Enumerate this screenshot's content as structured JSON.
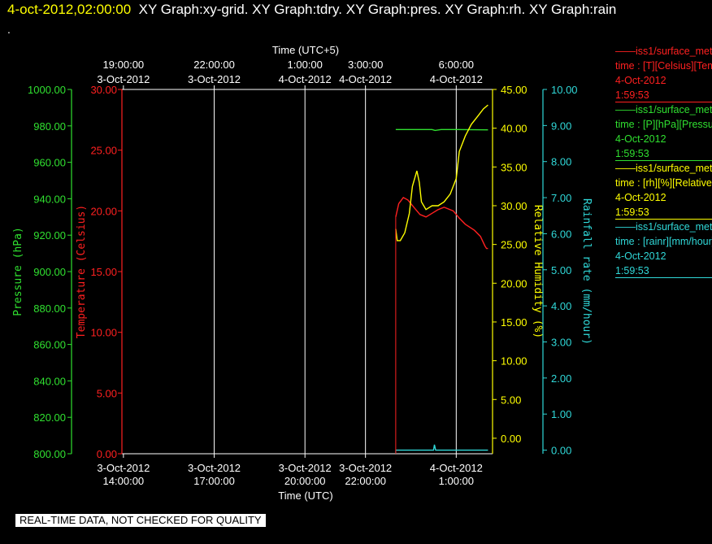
{
  "header": {
    "datetime": "4-oct-2012,02:00:00",
    "graphs": "XY Graph:xy-grid.  XY Graph:tdry.  XY Graph:pres.  XY Graph:rh.  XY Graph:rain",
    "dot": "."
  },
  "banner": "REAL-TIME DATA, NOT CHECKED FOR QUALITY",
  "legend": [
    {
      "name": "iss1/surface_met",
      "line1": "——iss1/surface_met",
      "line2": "time : [T][Celsius][Temperature]",
      "line3": "4-Oct-2012",
      "line4": "1:59:53",
      "color": "#ff2020"
    },
    {
      "name": "iss1/surface_met",
      "line1": "——iss1/surface_met",
      "line2": "time : [P][hPa][Pressure]",
      "line3": "4-Oct-2012",
      "line4": "1:59:53",
      "color": "#30e030"
    },
    {
      "name": "iss1/surface_met",
      "line1": "——iss1/surface_met",
      "line2": "time : [rh][%][Relative Humidity]",
      "line3": "4-Oct-2012",
      "line4": "1:59:53",
      "color": "#ffff00"
    },
    {
      "name": "iss1/surface_met",
      "line1": "——iss1/surface_met",
      "line2": "time : [rainr][mm/hour]",
      "line3": "4-Oct-2012",
      "line4": "1:59:53",
      "color": "#30d8d8"
    }
  ],
  "chart_data": {
    "type": "line",
    "colors": {
      "temperature": "#ff2020",
      "pressure": "#30e030",
      "humidity": "#ffff00",
      "rain": "#30d8d8",
      "grid": "#ffffff"
    },
    "x_axis_bottom": {
      "label": "Time (UTC)",
      "ticks": [
        {
          "date": "3-Oct-2012",
          "time": "14:00:00",
          "h": 14
        },
        {
          "date": "3-Oct-2012",
          "time": "17:00:00",
          "h": 17
        },
        {
          "date": "3-Oct-2012",
          "time": "20:00:00",
          "h": 20
        },
        {
          "date": "3-Oct-2012",
          "time": "22:00:00",
          "h": 22
        },
        {
          "date": "4-Oct-2012",
          "time": "1:00:00",
          "h": 25
        }
      ],
      "range_h": [
        13.95,
        26.2
      ]
    },
    "x_axis_top": {
      "label": "Time (UTC+5)",
      "ticks": [
        {
          "time": "19:00:00",
          "date": "3-Oct-2012",
          "h": 14
        },
        {
          "time": "22:00:00",
          "date": "3-Oct-2012",
          "h": 17
        },
        {
          "time": "1:00:00",
          "date": "4-Oct-2012",
          "h": 20
        },
        {
          "time": "3:00:00",
          "date": "4-Oct-2012",
          "h": 22
        },
        {
          "time": "6:00:00",
          "date": "4-Oct-2012",
          "h": 25
        }
      ]
    },
    "vertical_grid_h": [
      17,
      20,
      22,
      25
    ],
    "y_axes": [
      {
        "key": "pressure",
        "label": "Pressure (hPa)",
        "range": [
          800,
          1000
        ],
        "ticks": [
          "800.00",
          "820.00",
          "840.00",
          "860.00",
          "880.00",
          "900.00",
          "920.00",
          "940.00",
          "960.00",
          "980.00",
          "1000.00"
        ]
      },
      {
        "key": "temperature",
        "label": "Temperature (Celsius)",
        "range": [
          0,
          30
        ],
        "ticks": [
          "0.00",
          "5.00",
          "10.00",
          "15.00",
          "20.00",
          "25.00",
          "30.00"
        ]
      },
      {
        "key": "humidity",
        "label": "Relative Humidity (%)",
        "range": [
          -2,
          45
        ],
        "ticks": [
          "0.00",
          "5.00",
          "10.00",
          "15.00",
          "20.00",
          "25.00",
          "30.00",
          "35.00",
          "40.00",
          "45.00"
        ]
      },
      {
        "key": "rain",
        "label": "Rainfall rate (mm/hour)",
        "range": [
          -0.1,
          10
        ],
        "ticks": [
          "0.00",
          "1.00",
          "2.00",
          "3.00",
          "4.00",
          "5.00",
          "6.00",
          "7.00",
          "8.00",
          "9.00",
          "10.00"
        ]
      }
    ],
    "series": [
      {
        "key": "temperature",
        "x": [
          23.0,
          23.1,
          23.25,
          23.4,
          23.6,
          23.8,
          24.0,
          24.2,
          24.4,
          24.6,
          24.9,
          25.1,
          25.3,
          25.6,
          25.8,
          25.95,
          26.0,
          26.05
        ],
        "y": [
          19.5,
          20.6,
          21.1,
          20.9,
          20.3,
          19.7,
          19.5,
          19.8,
          20.1,
          20.3,
          20.0,
          19.4,
          18.9,
          18.4,
          17.9,
          17.1,
          16.9,
          16.9
        ]
      },
      {
        "key": "pressure",
        "x": [
          23.0,
          24.2,
          24.3,
          24.5,
          25.0,
          26.05
        ],
        "y": [
          978.0,
          978.0,
          977.5,
          978.0,
          978.0,
          977.8
        ]
      },
      {
        "key": "humidity",
        "x": [
          23.0,
          23.05,
          23.15,
          23.3,
          23.45,
          23.55,
          23.7,
          23.78,
          23.85,
          24.0,
          24.2,
          24.4,
          24.6,
          24.8,
          25.0,
          25.1,
          25.3,
          25.5,
          25.7,
          25.9,
          26.05
        ],
        "y": [
          27.0,
          25.5,
          25.5,
          26.5,
          29.0,
          32.5,
          34.5,
          33.0,
          30.5,
          29.5,
          30.0,
          30.0,
          30.5,
          31.5,
          33.5,
          37.0,
          39.0,
          40.5,
          41.5,
          42.5,
          43.0
        ]
      },
      {
        "key": "rain",
        "x": [
          23.0,
          24.25,
          24.28,
          24.32,
          26.05
        ],
        "y": [
          0.0,
          0.0,
          0.15,
          0.0,
          0.0
        ]
      }
    ]
  }
}
